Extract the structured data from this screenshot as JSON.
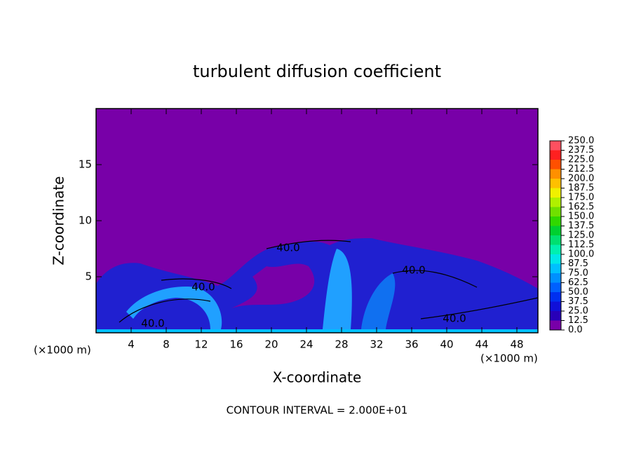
{
  "chart_data": {
    "type": "contour",
    "title": "turbulent diffusion coefficient",
    "xlabel": "X-coordinate",
    "ylabel": "Z-coordinate",
    "x_unit_left": "(×1000 m)",
    "x_unit_right": "(×1000 m)",
    "footer": "CONTOUR INTERVAL = 2.000E+01",
    "xlim": [
      0,
      50.4
    ],
    "ylim": [
      0,
      20
    ],
    "xticks": [
      4,
      8,
      12,
      16,
      20,
      24,
      28,
      32,
      36,
      40,
      44,
      48
    ],
    "yticks": [
      5,
      10,
      15
    ],
    "contour_labels": [
      {
        "value": 40,
        "label": "40.0"
      },
      {
        "value": 40,
        "label": "40.0"
      },
      {
        "value": 40,
        "label": "40.0"
      },
      {
        "value": 40,
        "label": "40.0"
      },
      {
        "value": 40,
        "label": "40.0"
      }
    ],
    "colorbar": {
      "levels": [
        {
          "value": 0,
          "label": "0.0"
        },
        {
          "value": 12.5,
          "label": "12.5"
        },
        {
          "value": 25,
          "label": "25.0"
        },
        {
          "value": 37.5,
          "label": "37.5"
        },
        {
          "value": 50,
          "label": "50.0"
        },
        {
          "value": 62.5,
          "label": "62.5"
        },
        {
          "value": 75,
          "label": "75.0"
        },
        {
          "value": 87.5,
          "label": "87.5"
        },
        {
          "value": 100,
          "label": "100.0"
        },
        {
          "value": 112.5,
          "label": "112.5"
        },
        {
          "value": 125,
          "label": "125.0"
        },
        {
          "value": 137.5,
          "label": "137.5"
        },
        {
          "value": 150,
          "label": "150.0"
        },
        {
          "value": 162.5,
          "label": "162.5"
        },
        {
          "value": 175,
          "label": "175.0"
        },
        {
          "value": 187.5,
          "label": "187.5"
        },
        {
          "value": 200,
          "label": "200.0"
        },
        {
          "value": 212.5,
          "label": "212.5"
        },
        {
          "value": 225,
          "label": "225.0"
        },
        {
          "value": 237.5,
          "label": "237.5"
        },
        {
          "value": 250,
          "label": "250.0"
        }
      ],
      "colors": [
        "#7800a8",
        "#2800b8",
        "#1010d8",
        "#0030f0",
        "#0060ff",
        "#0090ff",
        "#00c0ff",
        "#00e8e8",
        "#00f0b0",
        "#00e070",
        "#00d030",
        "#30d800",
        "#70e000",
        "#b0f000",
        "#f0f000",
        "#ffc000",
        "#ff9000",
        "#ff5000",
        "#ff2020",
        "#ff5060"
      ]
    }
  }
}
